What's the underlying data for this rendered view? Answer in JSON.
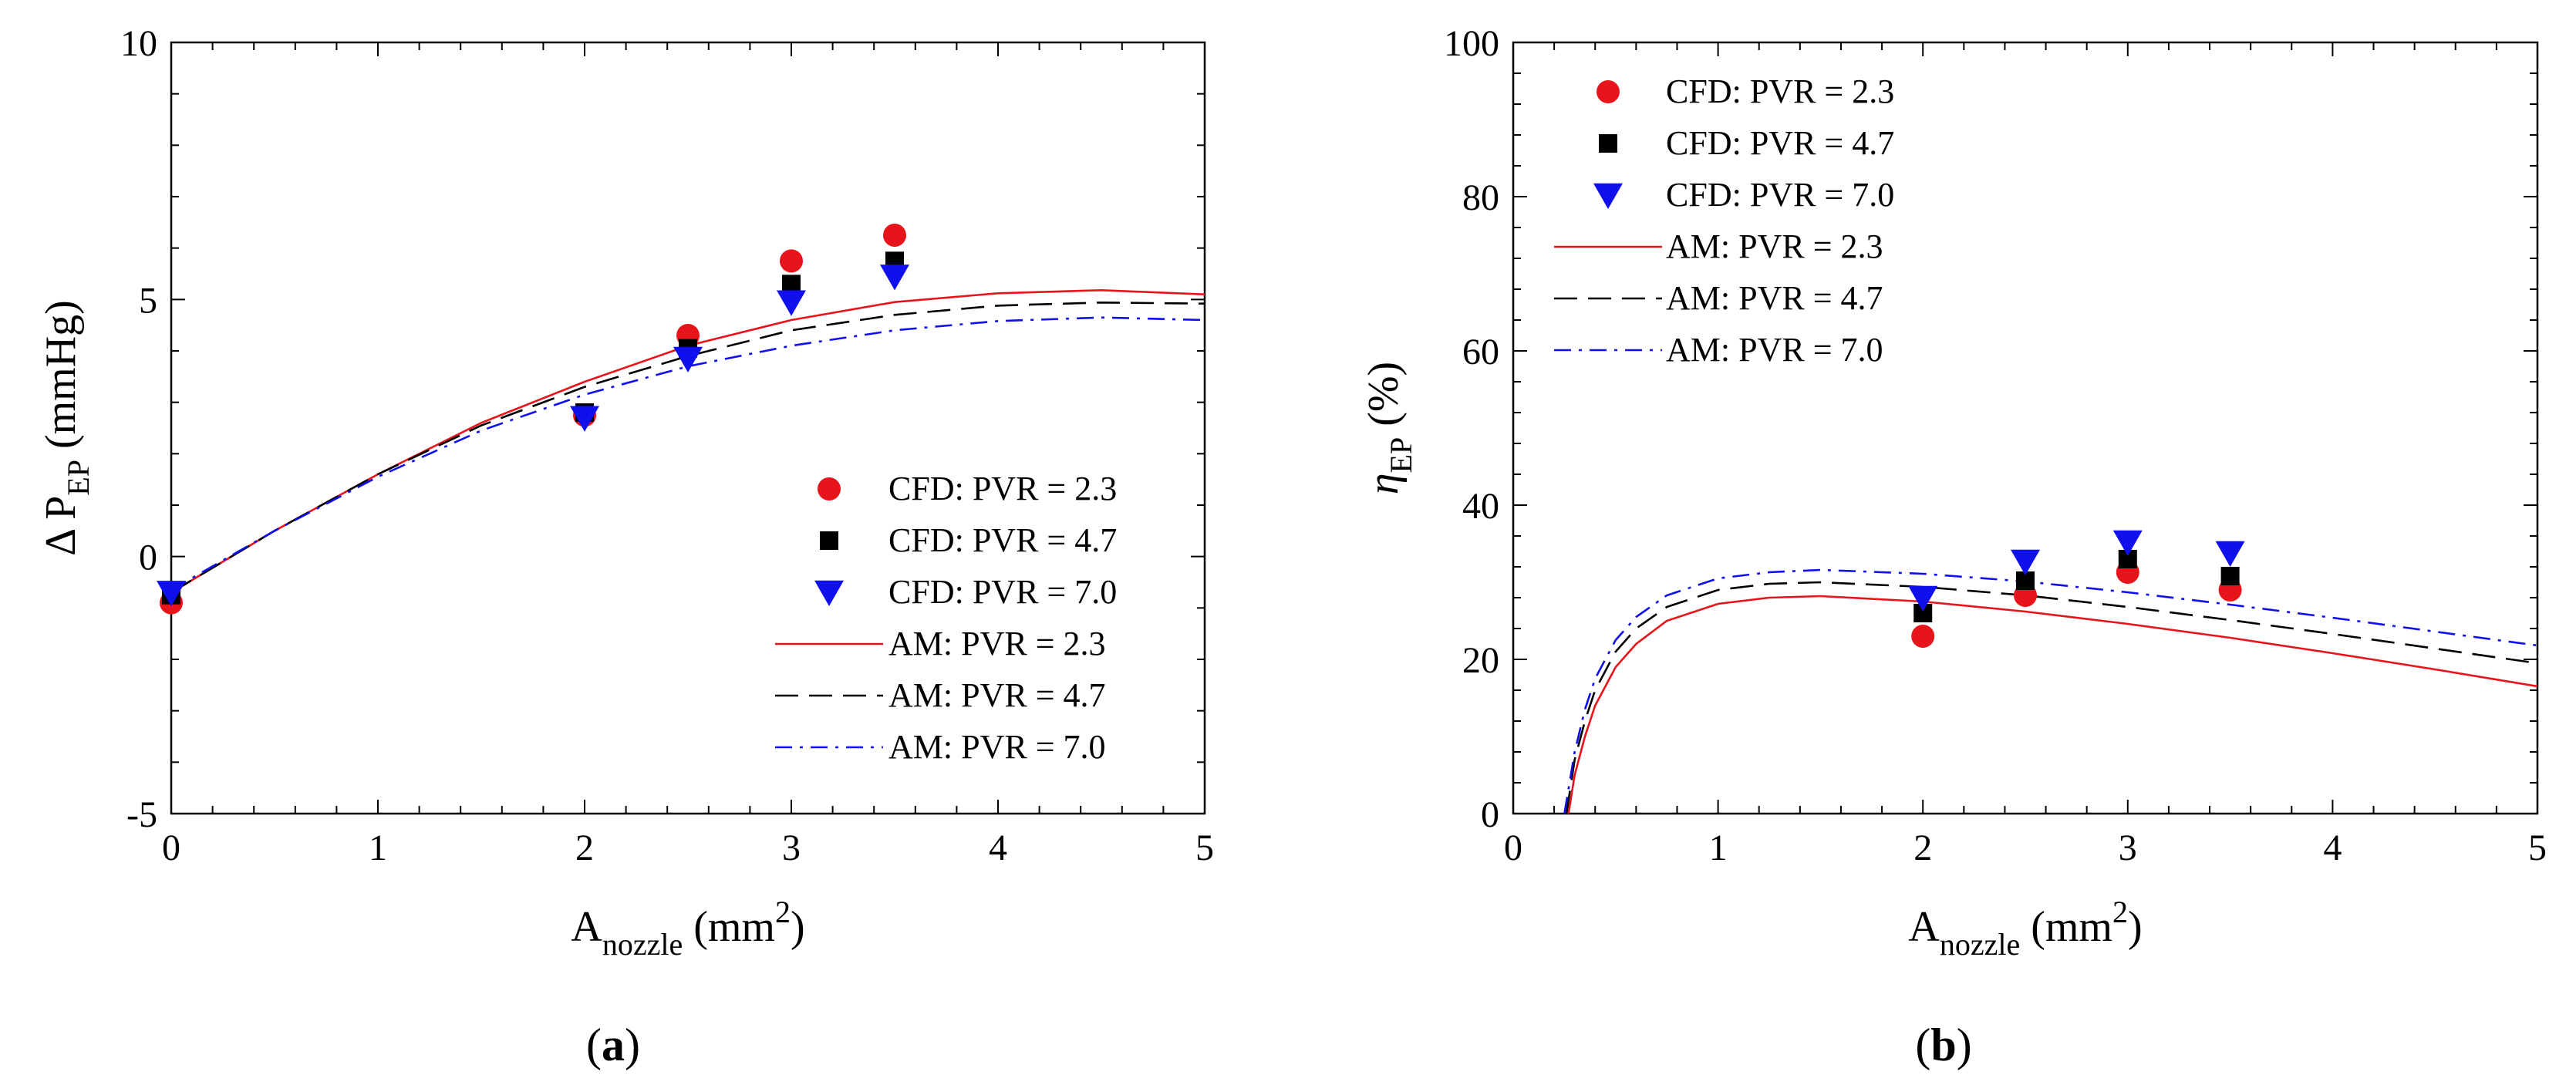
{
  "chart_data": [
    {
      "type": "scatter",
      "panel_label": "(a)",
      "panel_letter": "a",
      "xlabel": {
        "base": "A",
        "sub": "nozzle",
        "mid": " (mm",
        "sup": "2",
        "end": ")"
      },
      "ylabel": {
        "base": "Δ P",
        "sub": "EP",
        "end": " (mmHg)"
      },
      "xlim": [
        0,
        5
      ],
      "ylim": [
        -5,
        10
      ],
      "xticks": [
        0,
        1,
        2,
        3,
        4,
        5
      ],
      "xtick_labels": [
        "0",
        "1",
        "2",
        "3",
        "4",
        "5"
      ],
      "yticks": [
        -5,
        0,
        5,
        10
      ],
      "ytick_labels": [
        "-5",
        "0",
        "5",
        "10"
      ],
      "legend_position": "bottom-right",
      "series": [
        {
          "name": "CFD: PVR = 2.3",
          "kind": "marker",
          "marker": "circle",
          "color": "#e8141b",
          "x": [
            0,
            2,
            2.5,
            3,
            3.5
          ],
          "y": [
            -0.9,
            2.75,
            4.3,
            5.75,
            6.25
          ]
        },
        {
          "name": "CFD: PVR = 4.7",
          "kind": "marker",
          "marker": "square",
          "color": "#000000",
          "x": [
            0,
            2,
            2.5,
            3,
            3.5
          ],
          "y": [
            -0.75,
            2.8,
            4.05,
            5.3,
            5.75
          ]
        },
        {
          "name": "CFD: PVR = 7.0",
          "kind": "marker",
          "marker": "triangle-down",
          "color": "#1010ee",
          "x": [
            0,
            2,
            2.5,
            3,
            3.5
          ],
          "y": [
            -0.7,
            2.7,
            3.85,
            4.95,
            5.45
          ]
        },
        {
          "name": "AM: PVR = 2.3",
          "kind": "line",
          "dash": "solid",
          "color": "#e8141b",
          "x": [
            0,
            0.5,
            1,
            1.5,
            2,
            2.5,
            3,
            3.5,
            4,
            4.5,
            5
          ],
          "y": [
            -0.7,
            0.5,
            1.6,
            2.6,
            3.4,
            4.1,
            4.6,
            4.95,
            5.12,
            5.18,
            5.1
          ]
        },
        {
          "name": "AM: PVR = 4.7",
          "kind": "line",
          "dash": "dashed",
          "color": "#000000",
          "x": [
            0,
            0.5,
            1,
            1.5,
            2,
            2.5,
            3,
            3.5,
            4,
            4.5,
            5
          ],
          "y": [
            -0.7,
            0.5,
            1.6,
            2.55,
            3.3,
            3.9,
            4.4,
            4.7,
            4.88,
            4.94,
            4.92
          ]
        },
        {
          "name": "AM: PVR = 7.0",
          "kind": "line",
          "dash": "dashdot",
          "color": "#1010ee",
          "x": [
            0,
            0.5,
            1,
            1.5,
            2,
            2.5,
            3,
            3.5,
            4,
            4.5,
            5
          ],
          "y": [
            -0.65,
            0.5,
            1.55,
            2.45,
            3.15,
            3.7,
            4.1,
            4.4,
            4.58,
            4.65,
            4.6
          ]
        }
      ]
    },
    {
      "type": "scatter",
      "panel_label": "(b)",
      "panel_letter": "b",
      "xlabel": {
        "base": "A",
        "sub": "nozzle",
        "mid": " (mm",
        "sup": "2",
        "end": ")"
      },
      "ylabel": {
        "base": "η",
        "sub": "EP",
        "end": " (%)"
      },
      "xlim": [
        0,
        5
      ],
      "ylim": [
        0,
        100
      ],
      "xticks": [
        0,
        1,
        2,
        3,
        4,
        5
      ],
      "xtick_labels": [
        "0",
        "1",
        "2",
        "3",
        "4",
        "5"
      ],
      "yticks": [
        0,
        20,
        40,
        60,
        80,
        100
      ],
      "ytick_labels": [
        "0",
        "20",
        "40",
        "60",
        "80",
        "100"
      ],
      "legend_position": "top-left",
      "series": [
        {
          "name": "CFD: PVR = 2.3",
          "kind": "marker",
          "marker": "circle",
          "color": "#e8141b",
          "x": [
            2,
            2.5,
            3,
            3.5
          ],
          "y": [
            23,
            28.3,
            31.3,
            29
          ]
        },
        {
          "name": "CFD: PVR = 4.7",
          "kind": "marker",
          "marker": "square",
          "color": "#000000",
          "x": [
            2,
            2.5,
            3,
            3.5
          ],
          "y": [
            26,
            30.2,
            33,
            30.8
          ]
        },
        {
          "name": "CFD: PVR = 7.0",
          "kind": "marker",
          "marker": "triangle-down",
          "color": "#1010ee",
          "x": [
            2,
            2.5,
            3,
            3.5
          ],
          "y": [
            28,
            32.7,
            35.2,
            33.8
          ]
        },
        {
          "name": "AM: PVR = 2.3",
          "kind": "line",
          "dash": "solid",
          "color": "#e8141b",
          "x": [
            0.27,
            0.3,
            0.35,
            0.4,
            0.5,
            0.6,
            0.75,
            1,
            1.25,
            1.5,
            2,
            2.5,
            3,
            3.5,
            4,
            4.5,
            5
          ],
          "y": [
            0,
            5,
            10,
            14,
            19,
            22,
            25,
            27.2,
            28,
            28.2,
            27.5,
            26.2,
            24.6,
            22.8,
            20.8,
            18.7,
            16.5
          ]
        },
        {
          "name": "AM: PVR = 4.7",
          "kind": "line",
          "dash": "dashed",
          "color": "#000000",
          "x": [
            0.26,
            0.3,
            0.35,
            0.4,
            0.5,
            0.6,
            0.75,
            1,
            1.25,
            1.5,
            2,
            2.5,
            3,
            3.5,
            4,
            4.5,
            5
          ],
          "y": [
            0,
            7,
            12,
            16,
            21,
            24,
            26.8,
            29,
            29.8,
            30,
            29.4,
            28.3,
            26.8,
            25.1,
            23.3,
            21.4,
            19.5
          ]
        },
        {
          "name": "AM: PVR = 7.0",
          "kind": "line",
          "dash": "dashdot",
          "color": "#1010ee",
          "x": [
            0.25,
            0.3,
            0.35,
            0.4,
            0.5,
            0.6,
            0.75,
            1,
            1.25,
            1.5,
            2,
            2.5,
            3,
            3.5,
            4,
            4.5,
            5
          ],
          "y": [
            0,
            8,
            13.5,
            17.5,
            22.5,
            25.5,
            28.3,
            30.5,
            31.3,
            31.6,
            31.1,
            30.1,
            28.7,
            27.1,
            25.4,
            23.6,
            21.8
          ]
        }
      ]
    }
  ]
}
